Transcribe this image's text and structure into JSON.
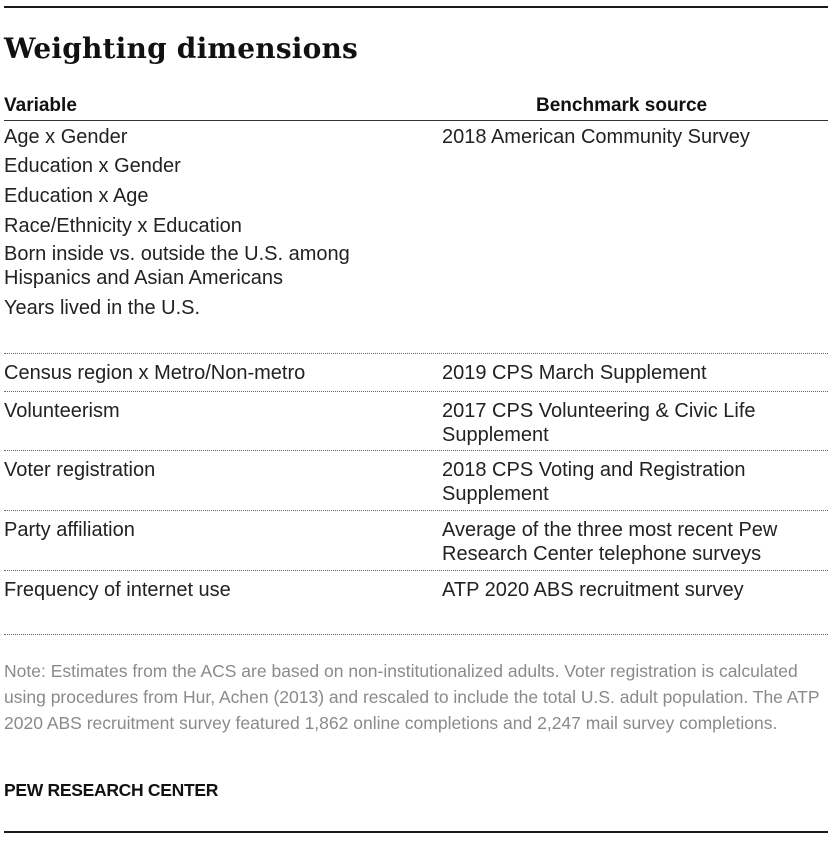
{
  "title": "Weighting dimensions",
  "table": {
    "headers": {
      "variable": "Variable",
      "benchmark": "Benchmark source"
    },
    "groups": [
      {
        "variables": [
          "Age x Gender",
          "Education x Gender",
          "Education x Age",
          "Race/Ethnicity x Education",
          "Born inside vs. outside the U.S. among Hispanics and Asian Americans",
          "Years lived in the U.S."
        ],
        "benchmark": "2018 American Community Survey"
      },
      {
        "variables": [
          "Census region x Metro/Non-metro"
        ],
        "benchmark": "2019 CPS March Supplement"
      },
      {
        "variables": [
          "Volunteerism"
        ],
        "benchmark": "2017 CPS Volunteering & Civic Life Supplement"
      },
      {
        "variables": [
          "Voter registration"
        ],
        "benchmark": "2018 CPS Voting and Registration Supplement"
      },
      {
        "variables": [
          "Party affiliation"
        ],
        "benchmark": "Average of the three most recent Pew Research Center telephone surveys"
      },
      {
        "variables": [
          "Frequency of internet use"
        ],
        "benchmark": "ATP 2020 ABS recruitment survey"
      }
    ]
  },
  "note": "Note: Estimates from the ACS are based on non-institutionalized adults. Voter registration is calculated using procedures from Hur, Achen (2013) and rescaled to include the total U.S. adult population. The ATP 2020 ABS recruitment survey featured 1,862 online completions and 2,247 mail survey completions.",
  "source": "PEW RESEARCH CENTER"
}
